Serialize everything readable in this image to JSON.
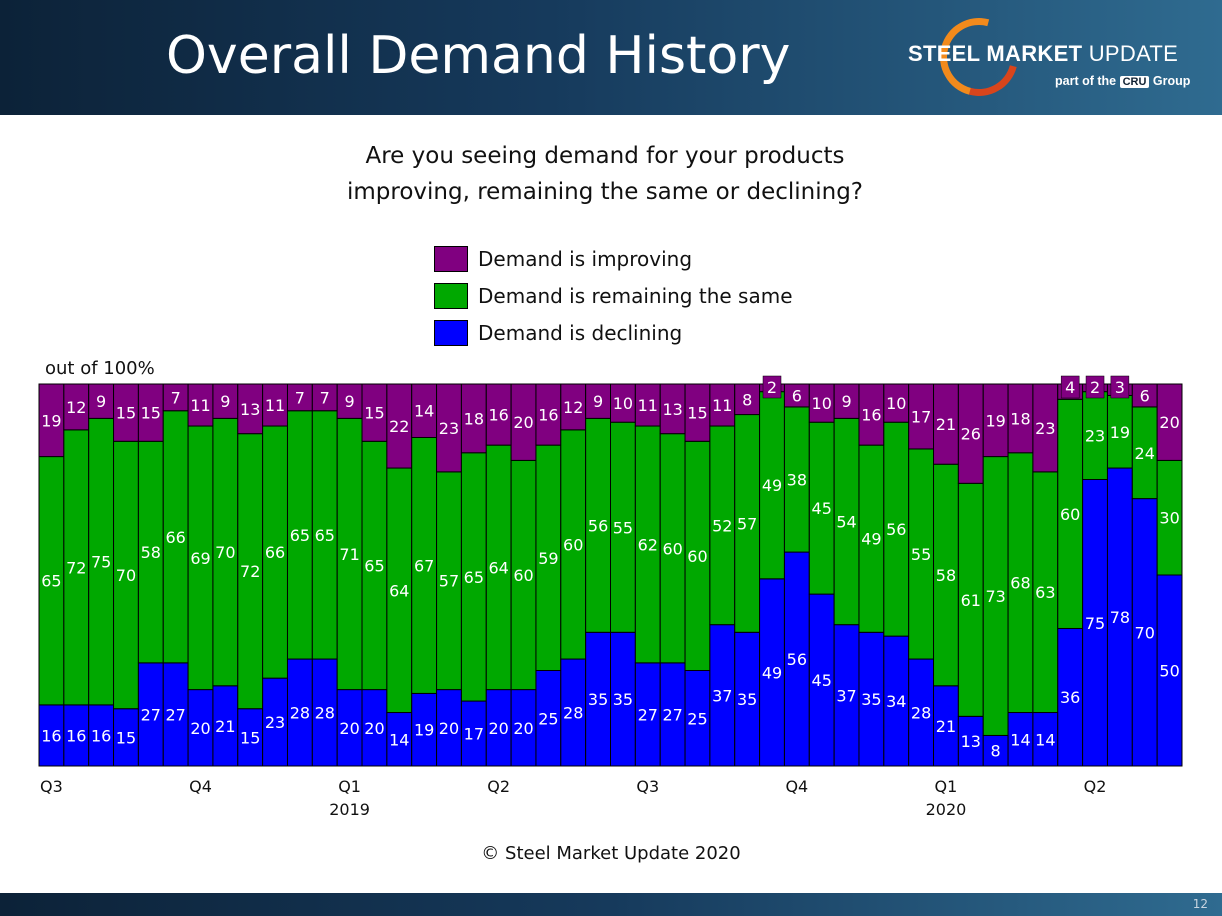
{
  "header": {
    "title": "Overall Demand History",
    "logo_brand_bold": "STEEL MARKET",
    "logo_brand_rest": " UPDATE",
    "logo_sub_pre": "part of the ",
    "logo_sub_cru": "CRU",
    "logo_sub_post": " Group"
  },
  "question_line1": "Are you seeing demand for your products",
  "question_line2": "improving, remaining the same or declining?",
  "out_of": "out of 100%",
  "copyright": "© Steel Market Update 2020",
  "page_number": "12",
  "colors": {
    "improving": "#800080",
    "same": "#00a800",
    "declining": "#0000ff"
  },
  "chart_data": {
    "type": "bar",
    "stacked": true,
    "ylim": [
      0,
      100
    ],
    "legend_placement": "top-center",
    "series": [
      {
        "name": "Demand is declining",
        "values": [
          16,
          16,
          16,
          15,
          27,
          27,
          20,
          21,
          15,
          23,
          28,
          28,
          20,
          20,
          14,
          19,
          20,
          17,
          20,
          20,
          25,
          28,
          35,
          35,
          27,
          27,
          25,
          37,
          35,
          49,
          56,
          45,
          37,
          35,
          34,
          28,
          21,
          13,
          8,
          14,
          14,
          36,
          75,
          78,
          70,
          50
        ]
      },
      {
        "name": "Demand is remaining the same",
        "values": [
          65,
          72,
          75,
          70,
          58,
          66,
          69,
          70,
          72,
          66,
          65,
          65,
          71,
          65,
          64,
          67,
          57,
          65,
          64,
          60,
          59,
          60,
          56,
          55,
          62,
          60,
          60,
          52,
          57,
          49,
          38,
          45,
          54,
          49,
          56,
          55,
          58,
          61,
          73,
          68,
          63,
          60,
          23,
          19,
          24,
          30
        ]
      },
      {
        "name": "Demand is improving",
        "values": [
          19,
          12,
          9,
          15,
          15,
          7,
          11,
          9,
          13,
          11,
          7,
          7,
          9,
          15,
          22,
          14,
          23,
          18,
          16,
          20,
          16,
          12,
          9,
          10,
          11,
          13,
          15,
          11,
          8,
          2,
          6,
          10,
          9,
          16,
          10,
          17,
          21,
          26,
          19,
          18,
          23,
          4,
          2,
          3,
          6,
          20
        ]
      }
    ],
    "quarter_ticks": [
      {
        "bar": 0,
        "label": "Q3",
        "year": ""
      },
      {
        "bar": 6,
        "label": "Q4",
        "year": ""
      },
      {
        "bar": 12,
        "label": "Q1",
        "year": "2019"
      },
      {
        "bar": 18,
        "label": "Q2",
        "year": ""
      },
      {
        "bar": 24,
        "label": "Q3",
        "year": ""
      },
      {
        "bar": 30,
        "label": "Q4",
        "year": ""
      },
      {
        "bar": 36,
        "label": "Q1",
        "year": "2020"
      },
      {
        "bar": 42,
        "label": "Q2",
        "year": ""
      }
    ]
  }
}
